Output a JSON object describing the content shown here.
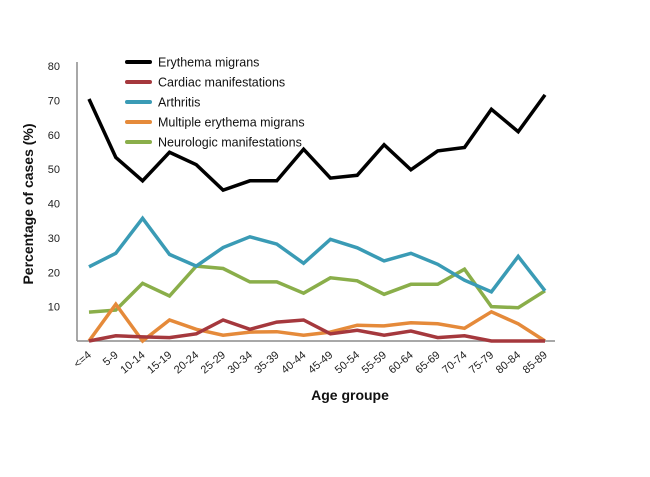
{
  "chart_data": {
    "type": "line",
    "title": "",
    "xlabel": "Age groupe",
    "ylabel": "Percentage of cases (%)",
    "ylim": [
      0,
      80
    ],
    "yticks": [
      10,
      20,
      30,
      40,
      50,
      60,
      70,
      80
    ],
    "grid": false,
    "legend_position": "top-left",
    "categories": [
      "<=4",
      "5-9",
      "10-14",
      "15-19",
      "20-24",
      "25-29",
      "30-34",
      "35-39",
      "40-44",
      "45-49",
      "50-54",
      "55-59",
      "60-64",
      "65-69",
      "70-74",
      "75-79",
      "80-84",
      "85-89"
    ],
    "series": [
      {
        "name": "Erythema migrans",
        "color": "#000000",
        "values": [
          70.4,
          53.4,
          46.6,
          54.9,
          51.3,
          43.9,
          46.6,
          46.6,
          55.8,
          47.4,
          48.2,
          57.1,
          49.8,
          55.3,
          56.3,
          67.4,
          60.9,
          71.6
        ]
      },
      {
        "name": "Cardiac manifestations",
        "color": "#A5383D",
        "values": [
          0,
          1.5,
          1.2,
          1.0,
          2.1,
          6.1,
          3.4,
          5.5,
          6.1,
          2.1,
          3.1,
          1.7,
          2.9,
          1.0,
          1.5,
          0,
          0,
          0
        ]
      },
      {
        "name": "Arthritis",
        "color": "#3A9BB5",
        "values": [
          21.6,
          25.5,
          35.7,
          25.2,
          21.8,
          27.2,
          30.3,
          28.2,
          22.6,
          29.6,
          27.1,
          23.3,
          25.5,
          22.3,
          17.7,
          14.3,
          24.6,
          14.6
        ]
      },
      {
        "name": "Multiple erythema migrans",
        "color": "#E58A3A",
        "values": [
          0,
          10.7,
          0,
          6.1,
          3.4,
          1.7,
          2.6,
          2.7,
          1.7,
          2.6,
          4.6,
          4.4,
          5.3,
          5.0,
          3.7,
          8.5,
          5.0,
          0
        ]
      },
      {
        "name": "Neurologic manifestations",
        "color": "#8AAE4A",
        "values": [
          8.4,
          9.0,
          16.8,
          13.1,
          21.8,
          21.1,
          17.2,
          17.2,
          13.9,
          18.4,
          17.5,
          13.6,
          16.5,
          16.5,
          20.9,
          10.0,
          9.7,
          14.6
        ]
      }
    ]
  }
}
